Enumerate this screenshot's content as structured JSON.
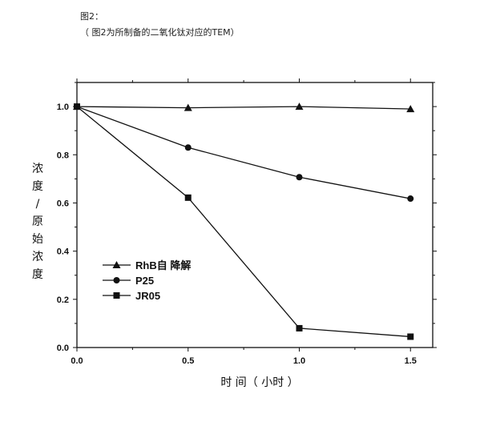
{
  "header": {
    "figure_label": "图2：",
    "caption": "（ 图2为所制备的二氧化钛对应的TEM）"
  },
  "chart_data": {
    "type": "line",
    "title": "",
    "xlabel": "时 间（ 小时 ）",
    "ylabel": "浓度/原始浓度",
    "xlim": [
      0.0,
      1.6
    ],
    "ylim": [
      0.0,
      1.1
    ],
    "xticks": [
      "0.0",
      "0.5",
      "1.0",
      "1.5"
    ],
    "yticks": [
      "0.0",
      "0.2",
      "0.4",
      "0.6",
      "0.8",
      "1.0"
    ],
    "grid": false,
    "legend_position": "bottom-left",
    "x": [
      0.0,
      0.5,
      1.0,
      1.5
    ],
    "series": [
      {
        "name": "RhB自 降解",
        "marker": "triangle",
        "values": [
          1.0,
          0.995,
          1.0,
          0.99
        ]
      },
      {
        "name": "P25",
        "marker": "circle",
        "values": [
          1.0,
          0.83,
          0.707,
          0.618
        ]
      },
      {
        "name": "JR05",
        "marker": "square",
        "values": [
          1.0,
          0.622,
          0.08,
          0.045
        ]
      }
    ]
  }
}
